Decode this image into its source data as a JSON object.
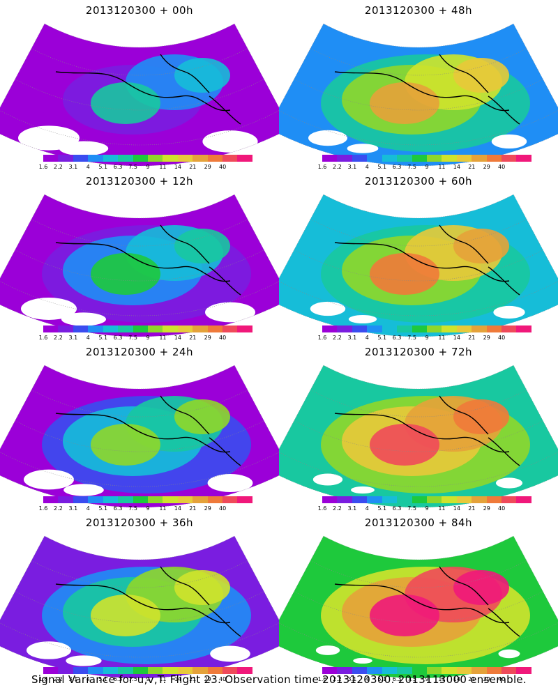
{
  "panels": [
    {
      "title": "2013120300 + 00h",
      "intensity": 0.15
    },
    {
      "title": "2013120300 + 48h",
      "intensity": 0.55
    },
    {
      "title": "2013120300 + 12h",
      "intensity": 0.25
    },
    {
      "title": "2013120300 + 60h",
      "intensity": 0.62
    },
    {
      "title": "2013120300 + 24h",
      "intensity": 0.35
    },
    {
      "title": "2013120300 + 72h",
      "intensity": 0.72
    },
    {
      "title": "2013120300 + 36h",
      "intensity": 0.45
    },
    {
      "title": "2013120300 + 84h",
      "intensity": 0.82
    }
  ],
  "colorbar": {
    "colors": [
      "#9b00d8",
      "#7a1de0",
      "#3a4cf0",
      "#1f8ef5",
      "#16bdd8",
      "#18c8a0",
      "#1ec93c",
      "#8fd72a",
      "#cfe32c",
      "#e8c93a",
      "#e5a23a",
      "#ef7a3a",
      "#ef4a5a",
      "#f0187a"
    ],
    "labels": [
      "1.6",
      "2.2",
      "3.1",
      "4",
      "5.1",
      "6.3",
      "7.5",
      "9",
      "11",
      "14",
      "21",
      "29",
      "40"
    ]
  },
  "footer": "Signal Variance for u,v,T. Flight 23. Observation time 2013120300. 2013113000 ensemble."
}
